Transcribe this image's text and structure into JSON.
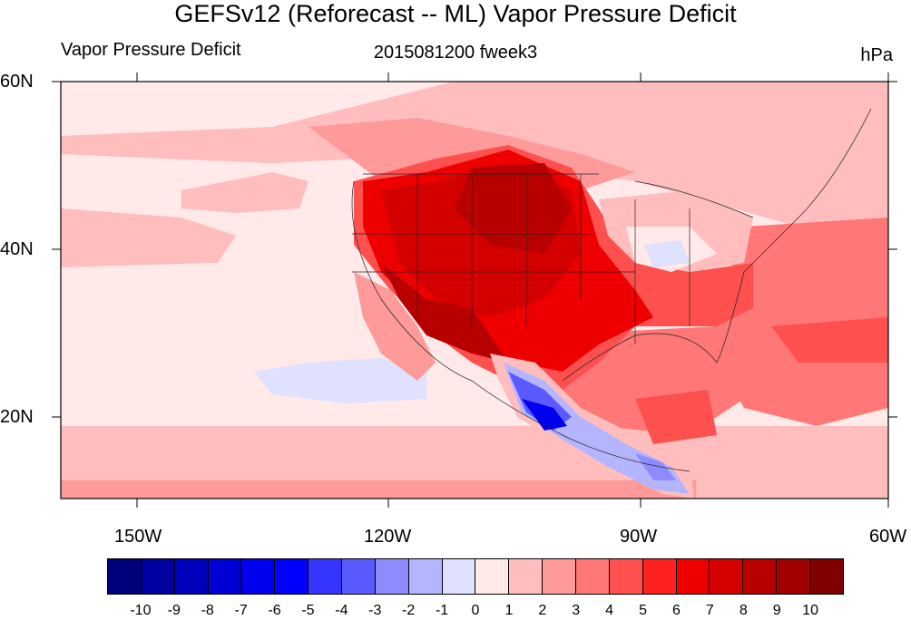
{
  "title": "GEFSv12 (Reforecast -- ML) Vapor Pressure Deficit",
  "subtitle_left": "Vapor Pressure Deficit",
  "subtitle_center": "2015081200 fweek3",
  "subtitle_right": "hPa",
  "lat_labels": [
    "60N",
    "40N",
    "20N"
  ],
  "lon_labels": [
    "150W",
    "120W",
    "90W",
    "60W"
  ],
  "colorbar": {
    "labels": [
      "-10",
      "-9",
      "-8",
      "-7",
      "-6",
      "-5",
      "-4",
      "-3",
      "-2",
      "-1",
      "0",
      "1",
      "2",
      "3",
      "4",
      "5",
      "6",
      "7",
      "8",
      "9",
      "10"
    ],
    "colors": [
      "#00007a",
      "#0000a0",
      "#0000bd",
      "#0000d6",
      "#0000ef",
      "#0000ff",
      "#3535ff",
      "#5a5aff",
      "#8c8cff",
      "#b5b5ff",
      "#e0e0ff",
      "#ffe9e9",
      "#ffbdbd",
      "#ff9a9a",
      "#ff7777",
      "#ff5050",
      "#ff2020",
      "#ef0000",
      "#d40000",
      "#b80000",
      "#a00000",
      "#800000"
    ]
  }
}
